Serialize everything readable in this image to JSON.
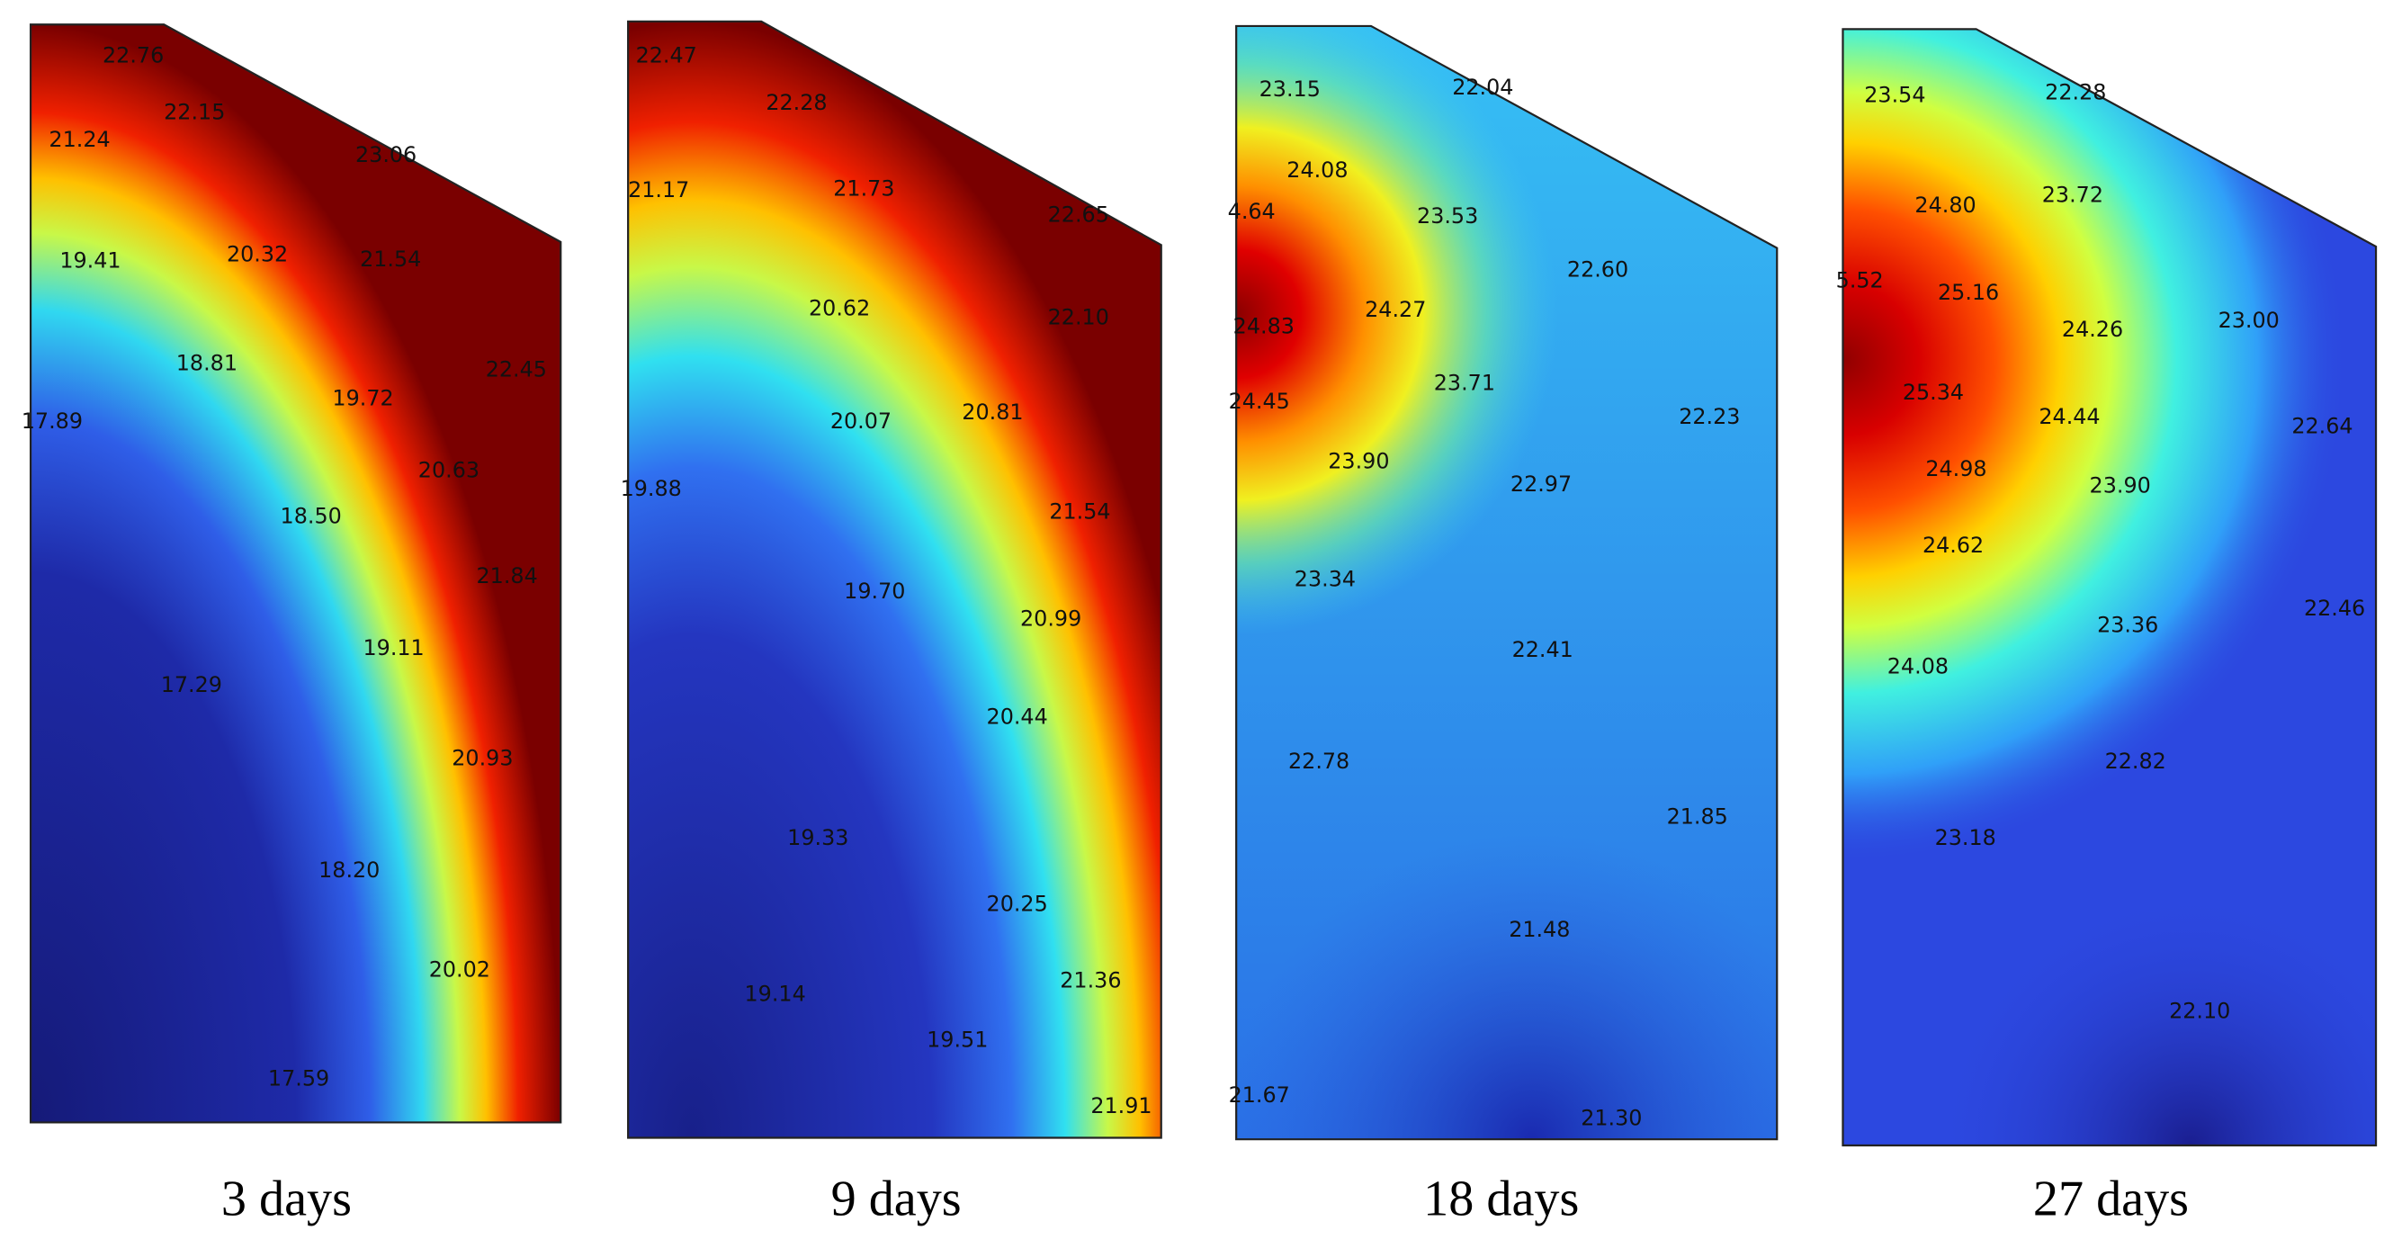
{
  "panels": [
    {
      "caption": "3 days",
      "labels": [
        "22.76",
        "22.15",
        "21.24",
        "23.06",
        "19.41",
        "20.32",
        "21.54",
        "18.81",
        "19.72",
        "22.45",
        "17.89",
        "20.63",
        "18.50",
        "21.84",
        "19.11",
        "17.29",
        "20.93",
        "18.20",
        "20.02",
        "17.59"
      ]
    },
    {
      "caption": "9 days",
      "labels": [
        "22.47",
        "22.28",
        "21.17",
        "21.73",
        "22.65",
        "20.62",
        "22.10",
        "20.07",
        "20.81",
        "19.88",
        "21.54",
        "19.70",
        "20.99",
        "20.44",
        "19.33",
        "20.25",
        "21.36",
        "19.14",
        "19.51",
        "21.91"
      ]
    },
    {
      "caption": "18 days",
      "labels": [
        "23.15",
        "22.04",
        "24.08",
        "4.64",
        "23.53",
        "22.60",
        "24.27",
        "24.83",
        "23.71",
        "24.45",
        "22.23",
        "23.90",
        "22.97",
        "23.34",
        "22.41",
        "22.78",
        "21.85",
        "21.48",
        "21.67",
        "21.30"
      ]
    },
    {
      "caption": "27 days",
      "labels": [
        "23.54",
        "22.28",
        "24.80",
        "23.72",
        "5.52",
        "25.16",
        "24.26",
        "23.00",
        "25.34",
        "24.44",
        "22.64",
        "24.98",
        "23.90",
        "24.62",
        "22.46",
        "23.36",
        "24.08",
        "22.82",
        "23.18",
        "22.10"
      ]
    }
  ]
}
